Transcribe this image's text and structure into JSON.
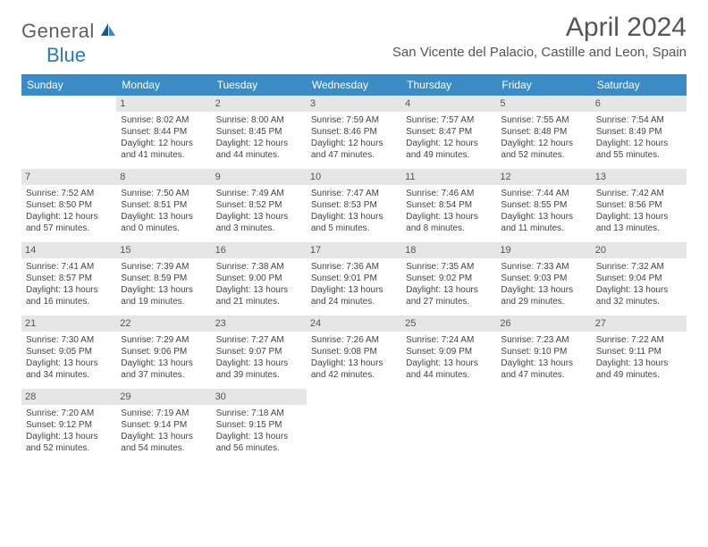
{
  "logo": {
    "part1": "General",
    "part2": "Blue"
  },
  "title": "April 2024",
  "location": "San Vicente del Palacio, Castille and Leon, Spain",
  "colors": {
    "header_bg": "#3b8bc4",
    "header_text": "#ffffff",
    "daynum_bg": "#e6e6e6",
    "text": "#444444",
    "logo_gray": "#606060",
    "logo_blue": "#2a7ab0"
  },
  "daysOfWeek": [
    "Sunday",
    "Monday",
    "Tuesday",
    "Wednesday",
    "Thursday",
    "Friday",
    "Saturday"
  ],
  "weeks": [
    [
      {
        "n": "",
        "sunrise": "",
        "sunset": "",
        "daylight": ""
      },
      {
        "n": "1",
        "sunrise": "Sunrise: 8:02 AM",
        "sunset": "Sunset: 8:44 PM",
        "daylight": "Daylight: 12 hours and 41 minutes."
      },
      {
        "n": "2",
        "sunrise": "Sunrise: 8:00 AM",
        "sunset": "Sunset: 8:45 PM",
        "daylight": "Daylight: 12 hours and 44 minutes."
      },
      {
        "n": "3",
        "sunrise": "Sunrise: 7:59 AM",
        "sunset": "Sunset: 8:46 PM",
        "daylight": "Daylight: 12 hours and 47 minutes."
      },
      {
        "n": "4",
        "sunrise": "Sunrise: 7:57 AM",
        "sunset": "Sunset: 8:47 PM",
        "daylight": "Daylight: 12 hours and 49 minutes."
      },
      {
        "n": "5",
        "sunrise": "Sunrise: 7:55 AM",
        "sunset": "Sunset: 8:48 PM",
        "daylight": "Daylight: 12 hours and 52 minutes."
      },
      {
        "n": "6",
        "sunrise": "Sunrise: 7:54 AM",
        "sunset": "Sunset: 8:49 PM",
        "daylight": "Daylight: 12 hours and 55 minutes."
      }
    ],
    [
      {
        "n": "7",
        "sunrise": "Sunrise: 7:52 AM",
        "sunset": "Sunset: 8:50 PM",
        "daylight": "Daylight: 12 hours and 57 minutes."
      },
      {
        "n": "8",
        "sunrise": "Sunrise: 7:50 AM",
        "sunset": "Sunset: 8:51 PM",
        "daylight": "Daylight: 13 hours and 0 minutes."
      },
      {
        "n": "9",
        "sunrise": "Sunrise: 7:49 AM",
        "sunset": "Sunset: 8:52 PM",
        "daylight": "Daylight: 13 hours and 3 minutes."
      },
      {
        "n": "10",
        "sunrise": "Sunrise: 7:47 AM",
        "sunset": "Sunset: 8:53 PM",
        "daylight": "Daylight: 13 hours and 5 minutes."
      },
      {
        "n": "11",
        "sunrise": "Sunrise: 7:46 AM",
        "sunset": "Sunset: 8:54 PM",
        "daylight": "Daylight: 13 hours and 8 minutes."
      },
      {
        "n": "12",
        "sunrise": "Sunrise: 7:44 AM",
        "sunset": "Sunset: 8:55 PM",
        "daylight": "Daylight: 13 hours and 11 minutes."
      },
      {
        "n": "13",
        "sunrise": "Sunrise: 7:42 AM",
        "sunset": "Sunset: 8:56 PM",
        "daylight": "Daylight: 13 hours and 13 minutes."
      }
    ],
    [
      {
        "n": "14",
        "sunrise": "Sunrise: 7:41 AM",
        "sunset": "Sunset: 8:57 PM",
        "daylight": "Daylight: 13 hours and 16 minutes."
      },
      {
        "n": "15",
        "sunrise": "Sunrise: 7:39 AM",
        "sunset": "Sunset: 8:59 PM",
        "daylight": "Daylight: 13 hours and 19 minutes."
      },
      {
        "n": "16",
        "sunrise": "Sunrise: 7:38 AM",
        "sunset": "Sunset: 9:00 PM",
        "daylight": "Daylight: 13 hours and 21 minutes."
      },
      {
        "n": "17",
        "sunrise": "Sunrise: 7:36 AM",
        "sunset": "Sunset: 9:01 PM",
        "daylight": "Daylight: 13 hours and 24 minutes."
      },
      {
        "n": "18",
        "sunrise": "Sunrise: 7:35 AM",
        "sunset": "Sunset: 9:02 PM",
        "daylight": "Daylight: 13 hours and 27 minutes."
      },
      {
        "n": "19",
        "sunrise": "Sunrise: 7:33 AM",
        "sunset": "Sunset: 9:03 PM",
        "daylight": "Daylight: 13 hours and 29 minutes."
      },
      {
        "n": "20",
        "sunrise": "Sunrise: 7:32 AM",
        "sunset": "Sunset: 9:04 PM",
        "daylight": "Daylight: 13 hours and 32 minutes."
      }
    ],
    [
      {
        "n": "21",
        "sunrise": "Sunrise: 7:30 AM",
        "sunset": "Sunset: 9:05 PM",
        "daylight": "Daylight: 13 hours and 34 minutes."
      },
      {
        "n": "22",
        "sunrise": "Sunrise: 7:29 AM",
        "sunset": "Sunset: 9:06 PM",
        "daylight": "Daylight: 13 hours and 37 minutes."
      },
      {
        "n": "23",
        "sunrise": "Sunrise: 7:27 AM",
        "sunset": "Sunset: 9:07 PM",
        "daylight": "Daylight: 13 hours and 39 minutes."
      },
      {
        "n": "24",
        "sunrise": "Sunrise: 7:26 AM",
        "sunset": "Sunset: 9:08 PM",
        "daylight": "Daylight: 13 hours and 42 minutes."
      },
      {
        "n": "25",
        "sunrise": "Sunrise: 7:24 AM",
        "sunset": "Sunset: 9:09 PM",
        "daylight": "Daylight: 13 hours and 44 minutes."
      },
      {
        "n": "26",
        "sunrise": "Sunrise: 7:23 AM",
        "sunset": "Sunset: 9:10 PM",
        "daylight": "Daylight: 13 hours and 47 minutes."
      },
      {
        "n": "27",
        "sunrise": "Sunrise: 7:22 AM",
        "sunset": "Sunset: 9:11 PM",
        "daylight": "Daylight: 13 hours and 49 minutes."
      }
    ],
    [
      {
        "n": "28",
        "sunrise": "Sunrise: 7:20 AM",
        "sunset": "Sunset: 9:12 PM",
        "daylight": "Daylight: 13 hours and 52 minutes."
      },
      {
        "n": "29",
        "sunrise": "Sunrise: 7:19 AM",
        "sunset": "Sunset: 9:14 PM",
        "daylight": "Daylight: 13 hours and 54 minutes."
      },
      {
        "n": "30",
        "sunrise": "Sunrise: 7:18 AM",
        "sunset": "Sunset: 9:15 PM",
        "daylight": "Daylight: 13 hours and 56 minutes."
      },
      {
        "n": "",
        "sunrise": "",
        "sunset": "",
        "daylight": ""
      },
      {
        "n": "",
        "sunrise": "",
        "sunset": "",
        "daylight": ""
      },
      {
        "n": "",
        "sunrise": "",
        "sunset": "",
        "daylight": ""
      },
      {
        "n": "",
        "sunrise": "",
        "sunset": "",
        "daylight": ""
      }
    ]
  ]
}
